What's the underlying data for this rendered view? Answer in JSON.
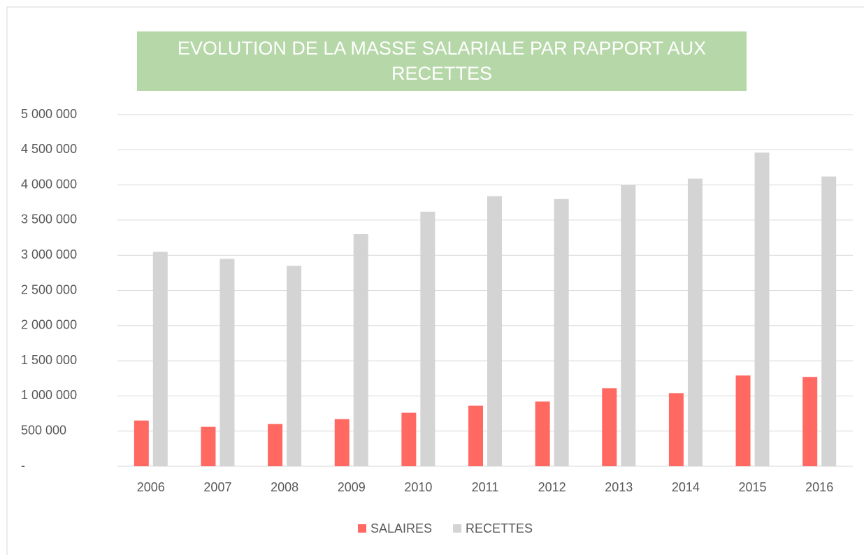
{
  "chart_data": {
    "type": "bar",
    "title": "EVOLUTION DE LA MASSE SALARIALE PAR RAPPORT AUX RECETTES",
    "categories": [
      "2006",
      "2007",
      "2008",
      "2009",
      "2010",
      "2011",
      "2012",
      "2013",
      "2014",
      "2015",
      "2016"
    ],
    "series": [
      {
        "name": "SALAIRES",
        "color": "#ff6961",
        "values": [
          650000,
          560000,
          600000,
          670000,
          760000,
          860000,
          920000,
          1110000,
          1040000,
          1290000,
          1270000
        ]
      },
      {
        "name": "RECETTES",
        "color": "#d4d4d4",
        "values": [
          3050000,
          2950000,
          2850000,
          3300000,
          3620000,
          3840000,
          3800000,
          4000000,
          4090000,
          4460000,
          4120000
        ]
      }
    ],
    "ylim": [
      0,
      5000000
    ],
    "yticks": [
      {
        "value": 0,
        "label": "-"
      },
      {
        "value": 500000,
        "label": "500 000"
      },
      {
        "value": 1000000,
        "label": "1 000 000"
      },
      {
        "value": 1500000,
        "label": "1 500 000"
      },
      {
        "value": 2000000,
        "label": "2 000 000"
      },
      {
        "value": 2500000,
        "label": "2 500 000"
      },
      {
        "value": 3000000,
        "label": "3 000 000"
      },
      {
        "value": 3500000,
        "label": "3 500 000"
      },
      {
        "value": 4000000,
        "label": "4 000 000"
      },
      {
        "value": 4500000,
        "label": "4 500 000"
      },
      {
        "value": 5000000,
        "label": "5 000 000"
      }
    ],
    "grid": true,
    "legend": "bottom",
    "title_background": "#b6d7a8"
  }
}
